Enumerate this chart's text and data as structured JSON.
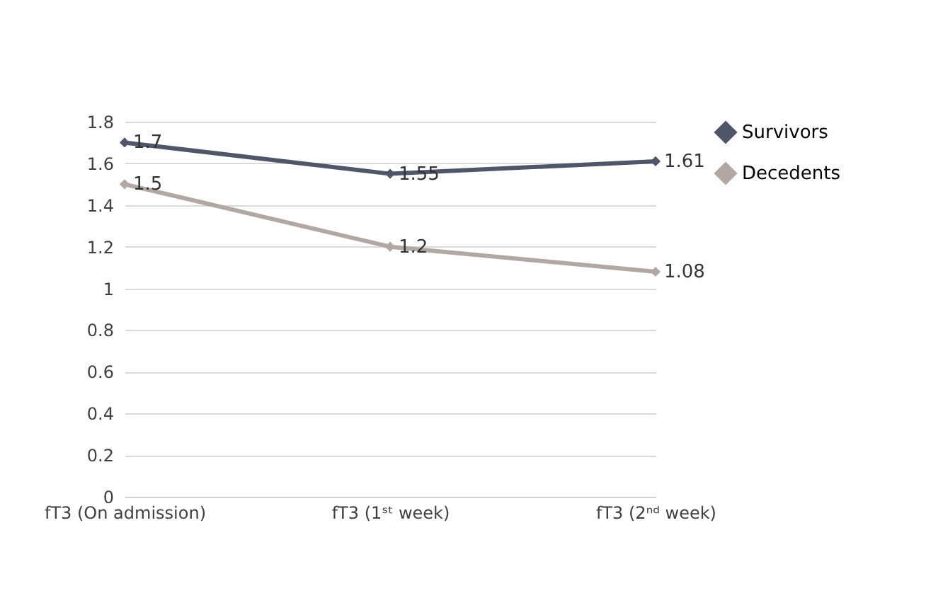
{
  "chart_data": {
    "type": "line",
    "categories": [
      "fT3 (On admission)",
      "fT3 (1ˢᵗ  week)",
      "fT3 (2ⁿᵈ  week)"
    ],
    "series": [
      {
        "name": "Survivors",
        "color": "#4f5669",
        "values": [
          1.7,
          1.55,
          1.61
        ]
      },
      {
        "name": "Decedents",
        "color": "#b2a7a3",
        "values": [
          1.5,
          1.2,
          1.08
        ]
      }
    ],
    "ylim": [
      0,
      1.8
    ],
    "yticks": [
      0,
      0.2,
      0.4,
      0.6,
      0.8,
      1,
      1.2,
      1.4,
      1.6,
      1.8
    ],
    "grid": "y",
    "legend": "right",
    "marker": "diamond",
    "line_style": "solid",
    "data_labels": true
  }
}
